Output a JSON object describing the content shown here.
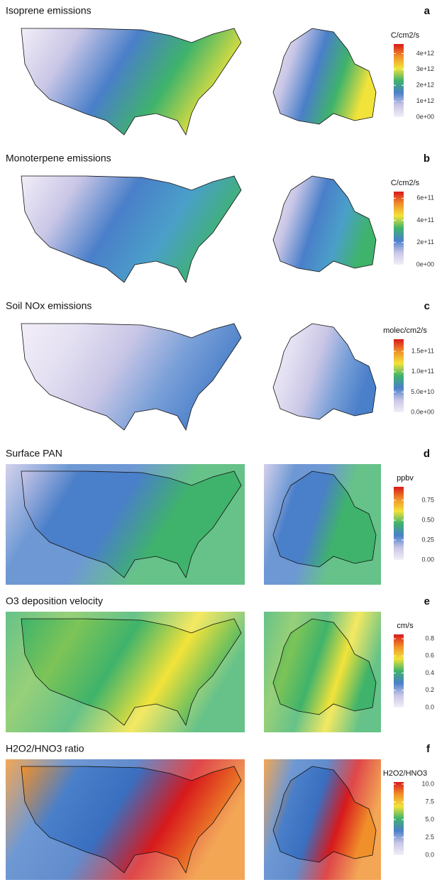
{
  "colormap": [
    "#f3eef8",
    "#c9c6e6",
    "#4a7fc9",
    "#3fb36b",
    "#f2e33a",
    "#f0902a",
    "#d7191c"
  ],
  "panels": [
    {
      "letter": "a",
      "title": "Isoprene emissions",
      "unit": "C/cm2/s",
      "lim": [
        0,
        4600000000000.0
      ],
      "ticks": [
        {
          "value": 0,
          "label": "0e+00"
        },
        {
          "value": 1000000000000.0,
          "label": "1e+12"
        },
        {
          "value": 2000000000000.0,
          "label": "2e+12"
        },
        {
          "value": 3000000000000.0,
          "label": "3e+12"
        },
        {
          "value": 4000000000000.0,
          "label": "4e+12"
        }
      ]
    },
    {
      "letter": "b",
      "title": "Monoterpene emissions",
      "unit": "C/cm2/s",
      "lim": [
        0,
        660000000000.0
      ],
      "ticks": [
        {
          "value": 0,
          "label": "0e+00"
        },
        {
          "value": 200000000000.0,
          "label": "2e+11"
        },
        {
          "value": 400000000000.0,
          "label": "4e+11"
        },
        {
          "value": 600000000000.0,
          "label": "6e+11"
        }
      ]
    },
    {
      "letter": "c",
      "title": "Soil NOx emissions",
      "unit": "molec/cm2/s",
      "lim": [
        0,
        180000000000.0
      ],
      "ticks": [
        {
          "value": 0,
          "label": "0.0e+00"
        },
        {
          "value": 50000000000.0,
          "label": "5.0e+10"
        },
        {
          "value": 100000000000.0,
          "label": "1.0e+11"
        },
        {
          "value": 150000000000.0,
          "label": "1.5e+11"
        }
      ]
    },
    {
      "letter": "d",
      "title": "Surface PAN",
      "unit": "ppbv",
      "lim": [
        0,
        0.92
      ],
      "ticks": [
        {
          "value": 0,
          "label": "0.00"
        },
        0.25,
        {
          "value": 0.5,
          "label": "0.50"
        },
        0.75
      ]
    },
    {
      "letter": "e",
      "title": "O3 deposition velocity",
      "unit": "cm/s",
      "lim": [
        0,
        0.85
      ],
      "ticks": [
        {
          "value": 0,
          "label": "0.0"
        },
        0.2,
        0.4,
        0.6,
        0.8
      ]
    },
    {
      "letter": "f",
      "title": "H2O2/HNO3 ratio",
      "unit": "H2O2/HNO3",
      "lim": [
        0,
        10.3
      ],
      "ticks": [
        {
          "value": 0,
          "label": "0.0"
        },
        2.5,
        {
          "value": 5,
          "label": "5.0"
        },
        7.5,
        {
          "value": 10,
          "label": "10.0"
        }
      ]
    }
  ]
}
